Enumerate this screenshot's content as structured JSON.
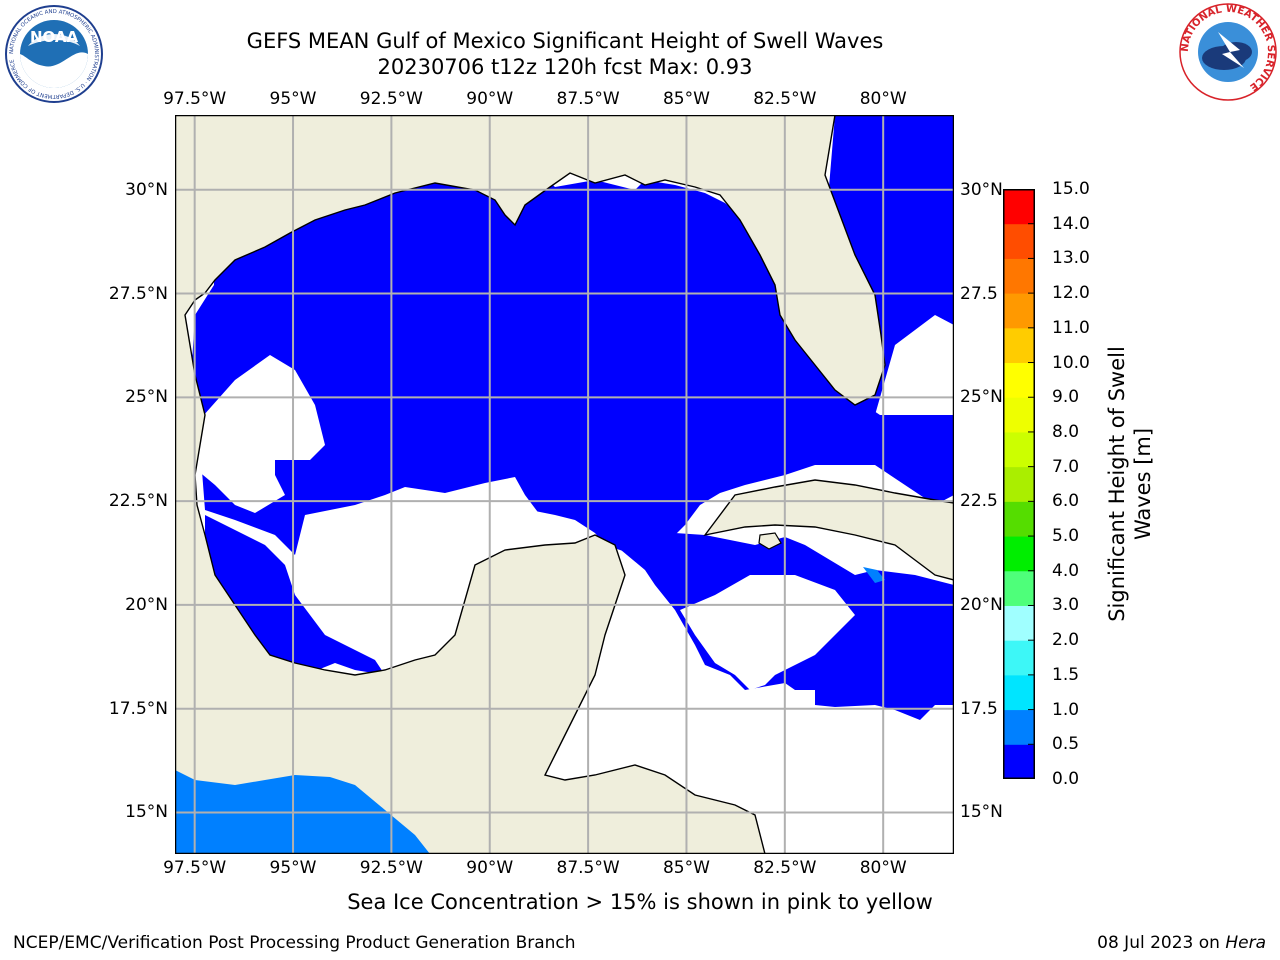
{
  "header": {
    "title_line1": "GEFS MEAN Gulf of Mexico Significant Height of Swell Waves",
    "title_line2": "20230706 t12z 120h fcst   Max: 0.93"
  },
  "logos": {
    "left": {
      "name": "noaa-logo",
      "text": "NOAA",
      "ring_text": "NATIONAL OCEANIC AND ATMOSPHERIC ADMINISTRATION · U.S. DEPARTMENT OF COMMERCE",
      "color": "#1f6fb5"
    },
    "right": {
      "name": "nws-logo",
      "ring_text": "NATIONAL WEATHER SERVICE",
      "color": "#d8232a"
    }
  },
  "map": {
    "lon_labels": [
      "97.5°W",
      "95°W",
      "92.5°W",
      "90°W",
      "87.5°W",
      "85°W",
      "82.5°W",
      "80°W"
    ],
    "lon_values": [
      -97.5,
      -95,
      -92.5,
      -90,
      -87.5,
      -85,
      -82.5,
      -80
    ],
    "lon_range": [
      -98,
      -78.2
    ],
    "lat_labels": [
      "30°N",
      "27.5°N",
      "25°N",
      "22.5°N",
      "20°N",
      "17.5°N",
      "15°N"
    ],
    "lat_right_labels": [
      "30°N",
      "27.5",
      "25°N",
      "22.5",
      "20°N",
      "17.5",
      "15°N"
    ],
    "lat_values": [
      30,
      27.5,
      25,
      22.5,
      20,
      17.5,
      15
    ],
    "lat_range": [
      14,
      31.8
    ],
    "land_color": "#efeedc",
    "ocean_swell_color": "#0000ff",
    "grid_color": "#b0b0b0"
  },
  "colorbar": {
    "label_line1": "Significant Height of Swell",
    "label_line2": "Waves [m]",
    "ticks": [
      "15.0",
      "14.0",
      "13.0",
      "12.0",
      "11.0",
      "10.0",
      "9.0",
      "8.0",
      "7.0",
      "6.0",
      "5.0",
      "4.0",
      "3.0",
      "2.0",
      "1.5",
      "1.0",
      "0.5",
      "0.0"
    ],
    "levels": [
      0,
      0.5,
      1,
      1.5,
      2,
      3,
      4,
      5,
      6,
      7,
      8,
      9,
      10,
      11,
      12,
      13,
      14,
      15
    ],
    "colors": [
      "#0000ff",
      "#0080ff",
      "#00e5ff",
      "#3df7f7",
      "#a0ffff",
      "#4eff7a",
      "#00ee00",
      "#55dd00",
      "#aaee00",
      "#ccff00",
      "#eeff00",
      "#ffff00",
      "#ffcc00",
      "#ff9900",
      "#ff7700",
      "#ff4d00",
      "#ff0000"
    ]
  },
  "note": "Sea Ice Concentration > 15% is shown in pink to yellow",
  "footer": {
    "left": "NCEP/EMC/Verification Post Processing Product Generation Branch",
    "right_date": "08 Jul 2023 on ",
    "right_host": "Hera"
  }
}
